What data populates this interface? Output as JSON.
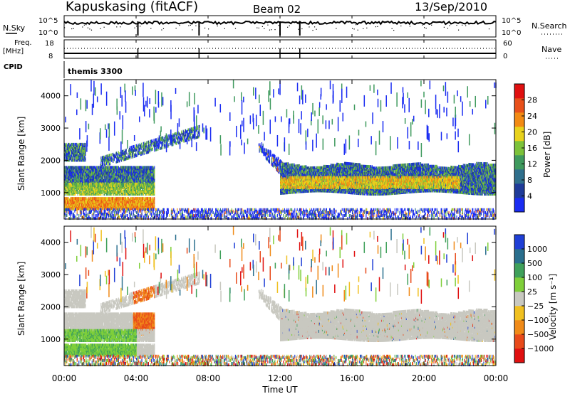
{
  "header": {
    "station": "Kapuskasing (fitACF)",
    "beam": "Beam 02",
    "date": "13/Sep/2010"
  },
  "status_rows": {
    "nsky_label": "N.Sky",
    "nsearch_label": "N.Search",
    "nsky_ticks": [
      "10^5",
      "10^0"
    ],
    "nsearch_ticks": [
      "10^5",
      "10^0"
    ],
    "freq_label": "Freq.",
    "freq_unit": "[MHz]",
    "freq_ticks": [
      "18",
      "8"
    ],
    "nave_label": "Nave",
    "nave_ticks": [
      "60",
      "0"
    ],
    "cpid_label": "CPID",
    "cpid_value": "themis 3300"
  },
  "chart_data": [
    {
      "type": "heatmap",
      "title": "",
      "xlabel": "",
      "ylabel": "Slant Range [km]",
      "x_ticks": [
        "00:00",
        "04:00",
        "08:00",
        "12:00",
        "16:00",
        "20:00",
        "00:00"
      ],
      "y_ticks": [
        1000,
        2000,
        3000,
        4000
      ],
      "ylim": [
        180,
        4500
      ],
      "colorbar": {
        "label": "Power [dB]",
        "ticks": [
          4,
          8,
          12,
          16,
          20,
          24,
          28
        ],
        "colors": [
          "#1a2cf2",
          "#1f3b99",
          "#2f6f8c",
          "#3f9a5e",
          "#7cc23a",
          "#e8d21c",
          "#f28a13",
          "#e8501a",
          "#e01010"
        ]
      }
    },
    {
      "type": "heatmap",
      "title": "",
      "xlabel": "Time UT",
      "ylabel": "Slant Range [km]",
      "x_ticks": [
        "00:00",
        "04:00",
        "08:00",
        "12:00",
        "16:00",
        "20:00",
        "00:00"
      ],
      "y_ticks": [
        1000,
        2000,
        3000,
        4000
      ],
      "ylim": [
        180,
        4500
      ],
      "colorbar": {
        "label": "Velocity [m s⁻¹]",
        "ticks": [
          "1000",
          "500",
          "100",
          "25",
          "−25",
          "−100",
          "−500",
          "−1000"
        ],
        "colors": [
          "#1f3fd6",
          "#2a6f8e",
          "#3fa05a",
          "#7fcf3a",
          "#c8c8c0",
          "#f0c020",
          "#f08a18",
          "#e84a1a",
          "#e01010"
        ]
      }
    }
  ]
}
